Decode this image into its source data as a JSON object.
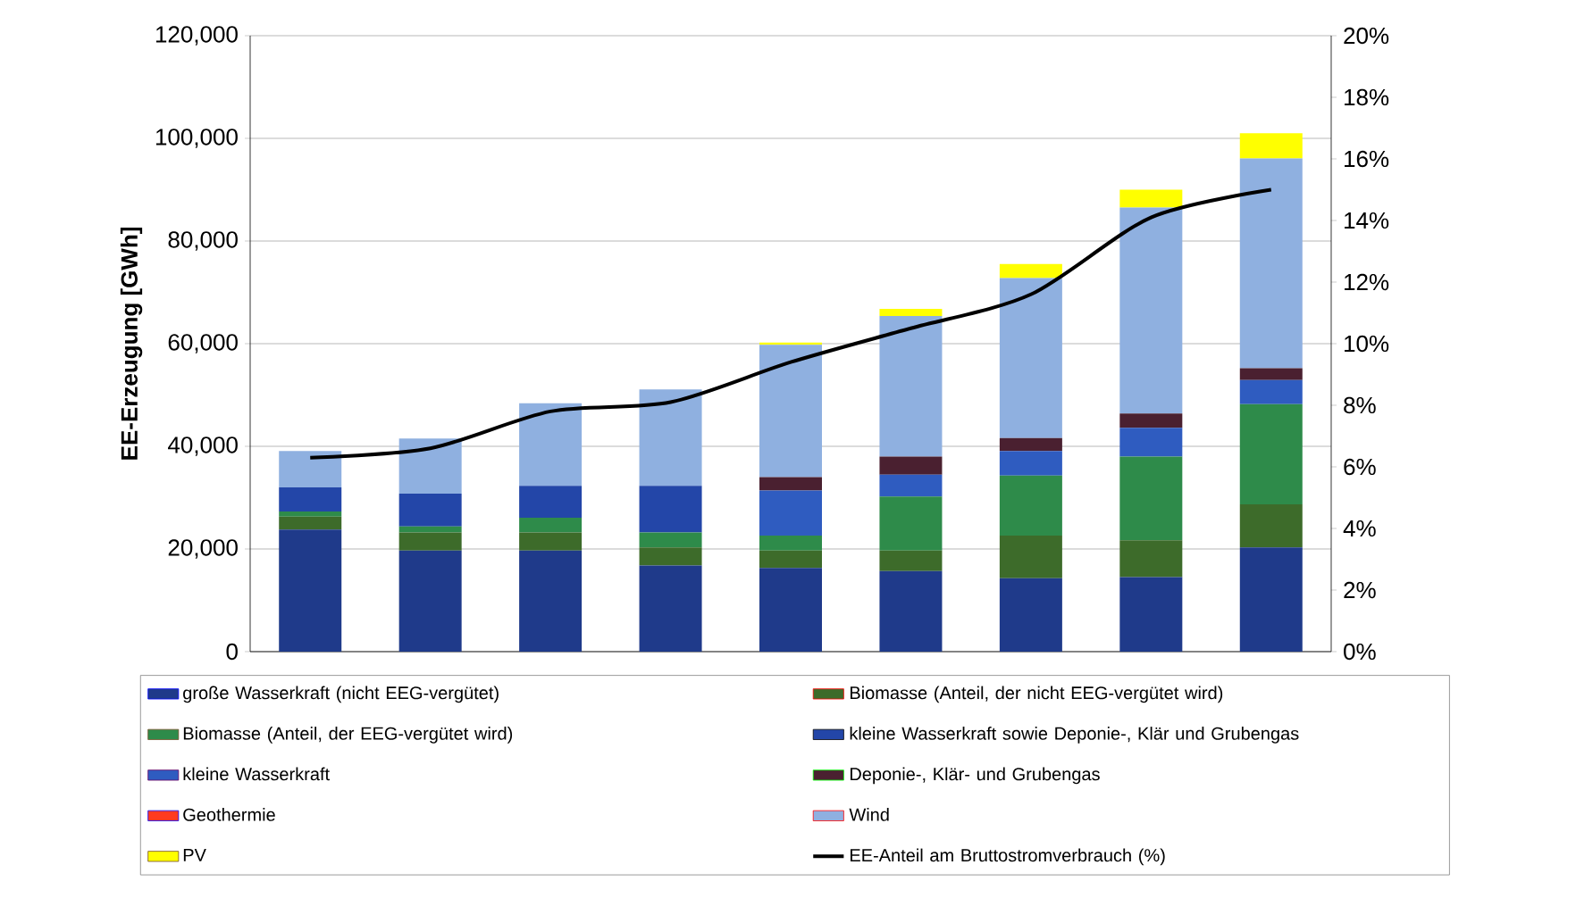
{
  "chart_data": {
    "type": "bar",
    "stacked": true,
    "ylabel": "EE-Erzeugung [GWh]",
    "categories": [
      null,
      null,
      null,
      null,
      null,
      null,
      null,
      null,
      null
    ],
    "ylim": [
      0,
      120000
    ],
    "yticks": [
      {
        "value": 0,
        "label": "0"
      },
      {
        "value": 20000,
        "label": "20,000"
      },
      {
        "value": 40000,
        "label": "40,000"
      },
      {
        "value": 60000,
        "label": "60,000"
      },
      {
        "value": 80000,
        "label": "80,000"
      },
      {
        "value": 100000,
        "label": "100,000"
      },
      {
        "value": 120000,
        "label": "120,000"
      }
    ],
    "y2lim": [
      0,
      20
    ],
    "y2ticks": [
      {
        "value": 0,
        "label": "0%"
      },
      {
        "value": 2,
        "label": "2%"
      },
      {
        "value": 4,
        "label": "4%"
      },
      {
        "value": 6,
        "label": "6%"
      },
      {
        "value": 8,
        "label": "8%"
      },
      {
        "value": 10,
        "label": "10%"
      },
      {
        "value": 12,
        "label": "12%"
      },
      {
        "value": 14,
        "label": "14%"
      },
      {
        "value": 16,
        "label": "16%"
      },
      {
        "value": 18,
        "label": "18%"
      },
      {
        "value": 20,
        "label": "20%"
      }
    ],
    "grid": "y",
    "legend": "bottom",
    "series": [
      {
        "name": "große Wasserkraft (nicht EEG-vergütet)",
        "color": "#1f3a8a",
        "values": [
          23800,
          19700,
          19700,
          16800,
          16300,
          15700,
          14300,
          14500,
          20300
        ]
      },
      {
        "name": "Biomasse (Anteil, der nicht EEG-vergütet wird)",
        "color": "#3d6b2a",
        "values": [
          2500,
          3500,
          3500,
          3500,
          3400,
          4000,
          8300,
          7200,
          8400
        ]
      },
      {
        "name": "Biomasse (Anteil, der EEG-vergütet wird)",
        "color": "#2e8b4a",
        "values": [
          1000,
          1200,
          2900,
          2900,
          2900,
          10500,
          11700,
          16300,
          19500
        ]
      },
      {
        "name": "kleine Wasserkraft sowie Deponie-, Klär und Grubengas",
        "color": "#2346a8",
        "values": [
          4700,
          6400,
          6200,
          9100,
          null,
          null,
          null,
          null,
          null
        ]
      },
      {
        "name": "kleine Wasserkraft",
        "color": "#2f5cc0",
        "values": [
          null,
          null,
          null,
          null,
          8800,
          4300,
          4800,
          5600,
          4700
        ]
      },
      {
        "name": "Deponie-, Klär- und Grubengas",
        "color": "#4a2030",
        "values": [
          null,
          null,
          null,
          null,
          2600,
          3500,
          2500,
          2800,
          2300
        ]
      },
      {
        "name": "Geothermie",
        "color": "#ff3b1f",
        "values": [
          0,
          0,
          0,
          0,
          0,
          0,
          0,
          0,
          0
        ]
      },
      {
        "name": "Wind",
        "color": "#8fb0e0",
        "values": [
          7100,
          10700,
          16100,
          18800,
          25800,
          27400,
          31200,
          40100,
          40900
        ]
      },
      {
        "name": "PV",
        "color": "#ffff00",
        "values": [
          0,
          0,
          0,
          0,
          400,
          1400,
          2700,
          3500,
          4900
        ]
      },
      {
        "name": "EE-Anteil am Bruttostromverbrauch (%)",
        "type": "line",
        "axis": "y2",
        "color": "#000000",
        "values": [
          6.3,
          6.6,
          7.8,
          8.1,
          9.4,
          10.5,
          11.6,
          14.1,
          15.0
        ]
      }
    ]
  }
}
